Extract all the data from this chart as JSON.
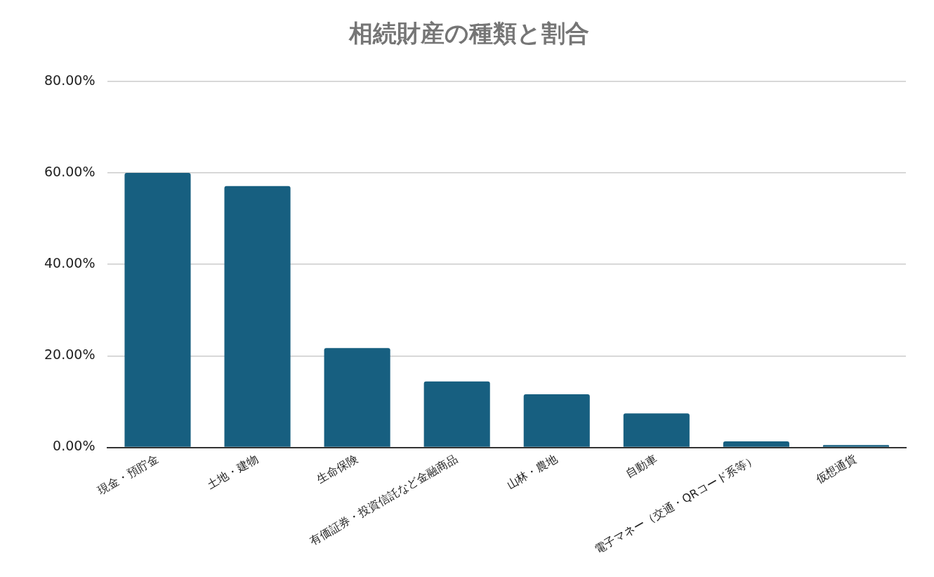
{
  "chart_data": {
    "type": "bar",
    "title": "相続財産の種類と割合",
    "categories": [
      "現金・預貯金",
      "土地・建物",
      "生命保険",
      "有価証券・投資信託など金融商品",
      "山林・農地",
      "自動車",
      "電子マネー（交通・QRコード系等）",
      "仮想通貨"
    ],
    "values": [
      60.0,
      57.1,
      21.7,
      14.4,
      11.6,
      7.4,
      1.3,
      0.5
    ],
    "color": "#175f80",
    "ylim": [
      0,
      80
    ],
    "yticks": [
      {
        "value": 0,
        "label": "0.00%"
      },
      {
        "value": 20,
        "label": "20.00%"
      },
      {
        "value": 40,
        "label": "40.00%"
      },
      {
        "value": 60,
        "label": "60.00%"
      },
      {
        "value": 80,
        "label": "80.00%"
      }
    ],
    "grid": "y",
    "legend": false
  }
}
